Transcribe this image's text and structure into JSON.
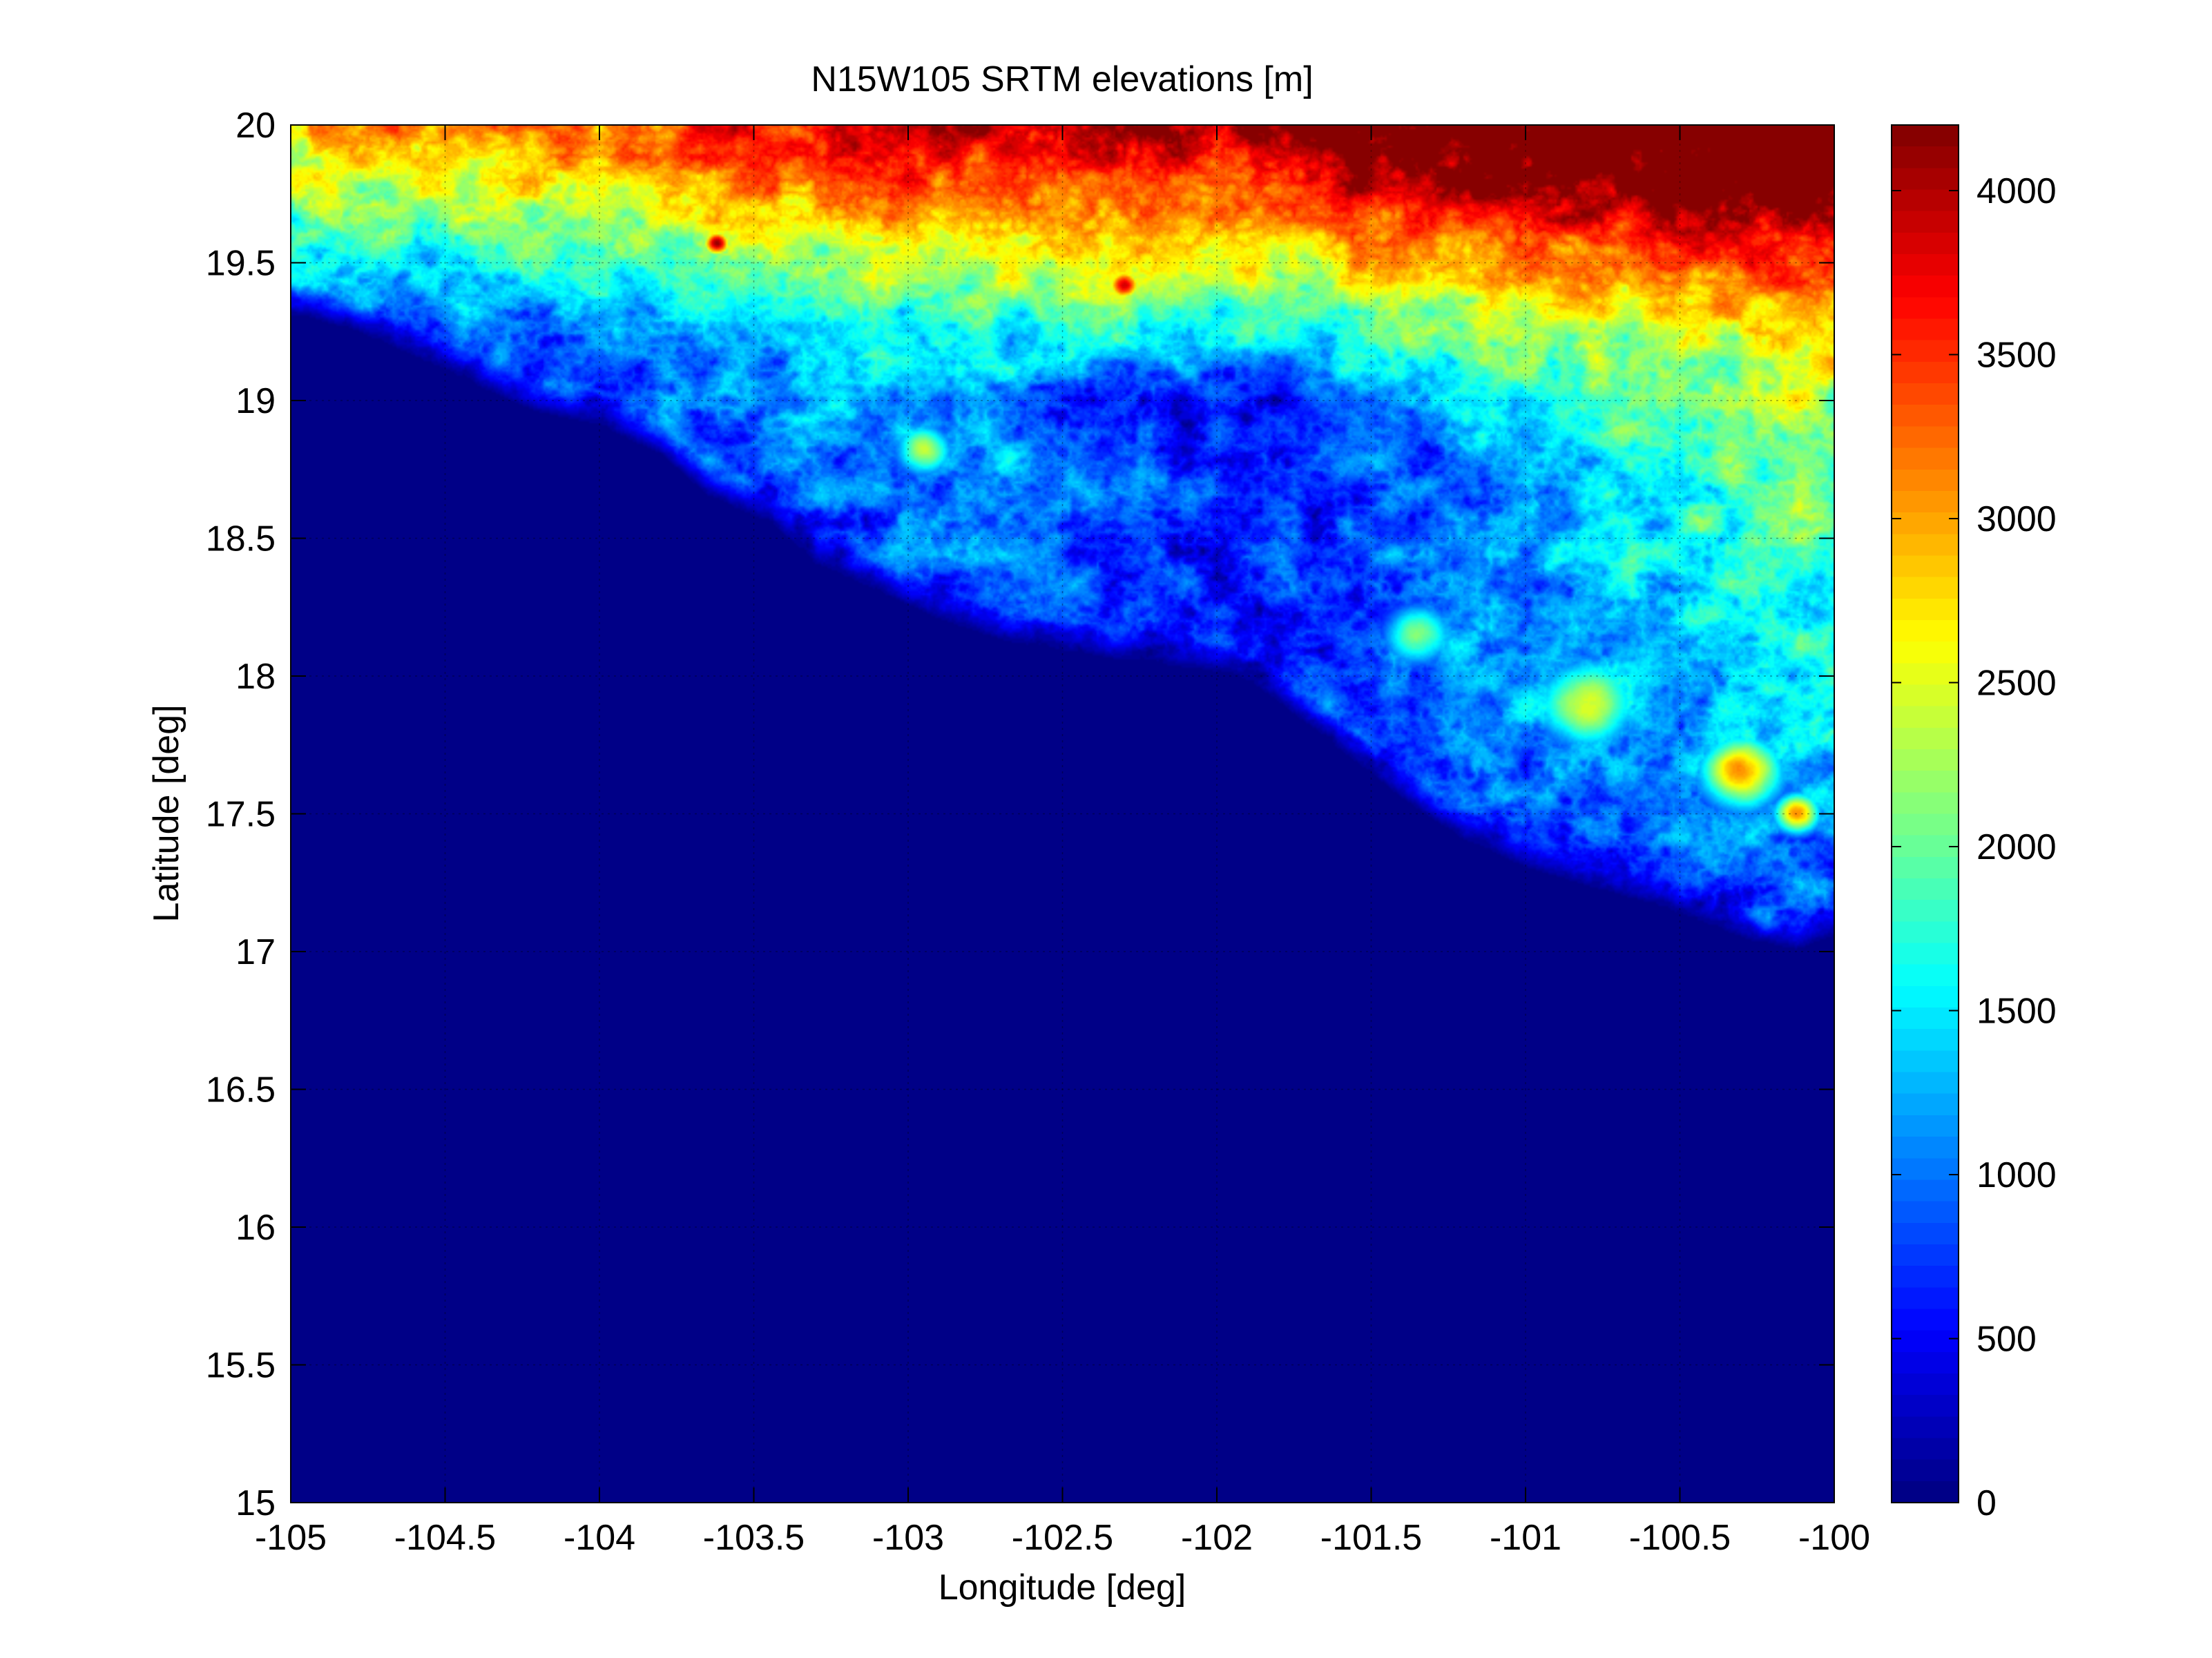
{
  "chart_data": {
    "type": "heatmap",
    "title": "N15W105 SRTM elevations [m]",
    "xlabel": "Longitude [deg]",
    "ylabel": "Latitude [deg]",
    "xlim": [
      -105,
      -100
    ],
    "ylim": [
      15,
      20
    ],
    "x_ticks": [
      -105,
      -104.5,
      -104,
      -103.5,
      -103,
      -102.5,
      -102,
      -101.5,
      -101,
      -100.5,
      -100
    ],
    "x_tick_labels": [
      "-105",
      "-104.5",
      "-104",
      "-103.5",
      "-103",
      "-102.5",
      "-102",
      "-101.5",
      "-101",
      "-100.5",
      "-100"
    ],
    "y_ticks": [
      15,
      15.5,
      16,
      16.5,
      17,
      17.5,
      18,
      18.5,
      19,
      19.5,
      20
    ],
    "y_tick_labels": [
      "15",
      "15.5",
      "16",
      "16.5",
      "17",
      "17.5",
      "18",
      "18.5",
      "19",
      "19.5",
      "20"
    ],
    "grid": true,
    "colormap": "jet",
    "colorbar": {
      "clim": [
        0,
        4200
      ],
      "ticks": [
        0,
        500,
        1000,
        1500,
        2000,
        2500,
        3000,
        3500,
        4000
      ],
      "tick_labels": [
        "0",
        "500",
        "1000",
        "1500",
        "2000",
        "2500",
        "3000",
        "3500",
        "4000"
      ],
      "position": "right"
    },
    "coastline": [
      [
        -104.95,
        19.3
      ],
      [
        -104.8,
        19.25
      ],
      [
        -104.6,
        19.15
      ],
      [
        -104.4,
        19.05
      ],
      [
        -104.2,
        18.95
      ],
      [
        -104.0,
        18.9
      ],
      [
        -103.8,
        18.8
      ],
      [
        -103.65,
        18.65
      ],
      [
        -103.45,
        18.55
      ],
      [
        -103.3,
        18.4
      ],
      [
        -103.1,
        18.3
      ],
      [
        -102.9,
        18.2
      ],
      [
        -102.7,
        18.12
      ],
      [
        -102.5,
        18.08
      ],
      [
        -102.3,
        18.05
      ],
      [
        -102.1,
        18.02
      ],
      [
        -101.95,
        18.0
      ],
      [
        -101.8,
        17.9
      ],
      [
        -101.6,
        17.72
      ],
      [
        -101.4,
        17.55
      ],
      [
        -101.2,
        17.4
      ],
      [
        -101.0,
        17.3
      ],
      [
        -100.8,
        17.23
      ],
      [
        -100.6,
        17.17
      ],
      [
        -100.4,
        17.08
      ],
      [
        -100.25,
        17.02
      ],
      [
        -100.12,
        17.0
      ],
      [
        -100.0,
        17.05
      ]
    ],
    "elevation_features": [
      {
        "lon": -103.62,
        "lat": 19.57,
        "elev": 4100,
        "radius": 0.05
      },
      {
        "lon": -103.75,
        "lat": 19.7,
        "elev": 2200,
        "radius": 0.14
      },
      {
        "lon": -102.3,
        "lat": 19.42,
        "elev": 3800,
        "radius": 0.06
      },
      {
        "lon": -102.35,
        "lat": 19.75,
        "elev": 3000,
        "radius": 0.1
      },
      {
        "lon": -101.85,
        "lat": 19.65,
        "elev": 3200,
        "radius": 0.12
      },
      {
        "lon": -101.55,
        "lat": 19.5,
        "elev": 3100,
        "radius": 0.1
      },
      {
        "lon": -101.35,
        "lat": 19.45,
        "elev": 3000,
        "radius": 0.1
      },
      {
        "lon": -101.6,
        "lat": 19.8,
        "elev": 2600,
        "radius": 0.15
      },
      {
        "lon": -100.75,
        "lat": 19.82,
        "elev": 3200,
        "radius": 0.08
      },
      {
        "lon": -100.15,
        "lat": 19.65,
        "elev": 3700,
        "radius": 0.17
      },
      {
        "lon": -100.12,
        "lat": 19.45,
        "elev": 3000,
        "radius": 0.12
      },
      {
        "lon": -102.95,
        "lat": 18.82,
        "elev": 2400,
        "radius": 0.1
      },
      {
        "lon": -101.35,
        "lat": 18.15,
        "elev": 2200,
        "radius": 0.12
      },
      {
        "lon": -100.8,
        "lat": 17.9,
        "elev": 2400,
        "radius": 0.18
      },
      {
        "lon": -100.3,
        "lat": 17.65,
        "elev": 2900,
        "radius": 0.15
      },
      {
        "lon": -100.12,
        "lat": 17.5,
        "elev": 3100,
        "radius": 0.08
      },
      {
        "lon": -104.15,
        "lat": 19.55,
        "elev": 1900,
        "radius": 0.1
      },
      {
        "lon": -103.0,
        "lat": 19.8,
        "elev": 2200,
        "radius": 0.25
      },
      {
        "lon": -100.5,
        "lat": 19.1,
        "elev": 1900,
        "radius": 0.2
      }
    ]
  }
}
